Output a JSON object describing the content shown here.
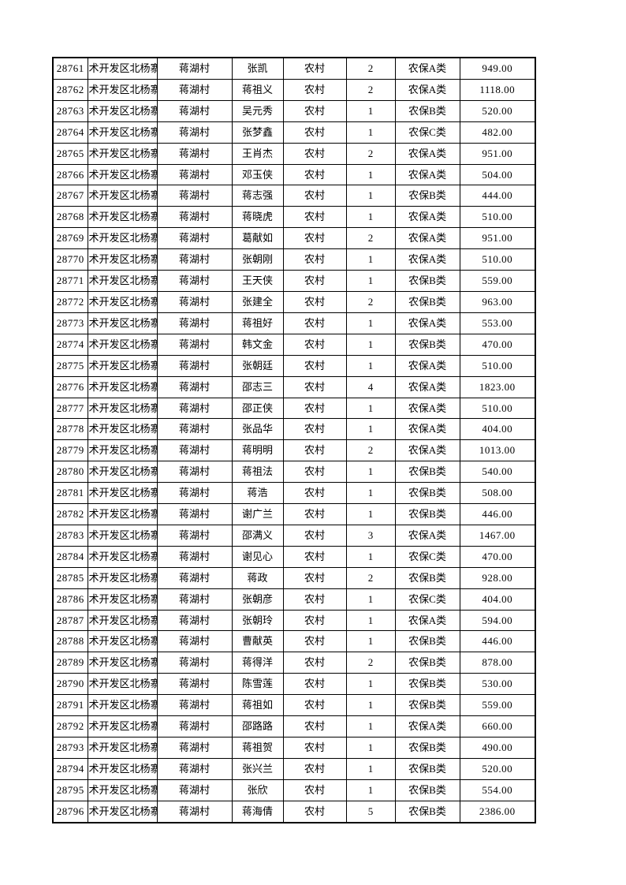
{
  "document": {
    "kind": "pension-roster-table-page",
    "text_color": "#000000",
    "border_color": "#000000",
    "page_background": "#ffffff"
  },
  "table": {
    "column_keys": [
      "id",
      "district",
      "village",
      "name",
      "type",
      "count",
      "category",
      "amount"
    ],
    "rows": [
      {
        "id": "28761",
        "district": "术开发区北杨寨",
        "village": "蒋湖村",
        "name": "张凯",
        "type": "农村",
        "count": "2",
        "category": "农保A类",
        "amount": "949.00"
      },
      {
        "id": "28762",
        "district": "术开发区北杨寨",
        "village": "蒋湖村",
        "name": "蒋祖义",
        "type": "农村",
        "count": "2",
        "category": "农保A类",
        "amount": "1118.00"
      },
      {
        "id": "28763",
        "district": "术开发区北杨寨",
        "village": "蒋湖村",
        "name": "吴元秀",
        "type": "农村",
        "count": "1",
        "category": "农保B类",
        "amount": "520.00"
      },
      {
        "id": "28764",
        "district": "术开发区北杨寨",
        "village": "蒋湖村",
        "name": "张梦鑫",
        "type": "农村",
        "count": "1",
        "category": "农保C类",
        "amount": "482.00"
      },
      {
        "id": "28765",
        "district": "术开发区北杨寨",
        "village": "蒋湖村",
        "name": "王肖杰",
        "type": "农村",
        "count": "2",
        "category": "农保A类",
        "amount": "951.00"
      },
      {
        "id": "28766",
        "district": "术开发区北杨寨",
        "village": "蒋湖村",
        "name": "邓玉侠",
        "type": "农村",
        "count": "1",
        "category": "农保A类",
        "amount": "504.00"
      },
      {
        "id": "28767",
        "district": "术开发区北杨寨",
        "village": "蒋湖村",
        "name": "蒋志强",
        "type": "农村",
        "count": "1",
        "category": "农保B类",
        "amount": "444.00"
      },
      {
        "id": "28768",
        "district": "术开发区北杨寨",
        "village": "蒋湖村",
        "name": "蒋晓虎",
        "type": "农村",
        "count": "1",
        "category": "农保A类",
        "amount": "510.00"
      },
      {
        "id": "28769",
        "district": "术开发区北杨寨",
        "village": "蒋湖村",
        "name": "葛献如",
        "type": "农村",
        "count": "2",
        "category": "农保A类",
        "amount": "951.00"
      },
      {
        "id": "28770",
        "district": "术开发区北杨寨",
        "village": "蒋湖村",
        "name": "张朝刚",
        "type": "农村",
        "count": "1",
        "category": "农保A类",
        "amount": "510.00"
      },
      {
        "id": "28771",
        "district": "术开发区北杨寨",
        "village": "蒋湖村",
        "name": "王天侠",
        "type": "农村",
        "count": "1",
        "category": "农保B类",
        "amount": "559.00"
      },
      {
        "id": "28772",
        "district": "术开发区北杨寨",
        "village": "蒋湖村",
        "name": "张建全",
        "type": "农村",
        "count": "2",
        "category": "农保B类",
        "amount": "963.00"
      },
      {
        "id": "28773",
        "district": "术开发区北杨寨",
        "village": "蒋湖村",
        "name": "蒋祖好",
        "type": "农村",
        "count": "1",
        "category": "农保A类",
        "amount": "553.00"
      },
      {
        "id": "28774",
        "district": "术开发区北杨寨",
        "village": "蒋湖村",
        "name": "韩文金",
        "type": "农村",
        "count": "1",
        "category": "农保B类",
        "amount": "470.00"
      },
      {
        "id": "28775",
        "district": "术开发区北杨寨",
        "village": "蒋湖村",
        "name": "张朝廷",
        "type": "农村",
        "count": "1",
        "category": "农保A类",
        "amount": "510.00"
      },
      {
        "id": "28776",
        "district": "术开发区北杨寨",
        "village": "蒋湖村",
        "name": "邵志三",
        "type": "农村",
        "count": "4",
        "category": "农保A类",
        "amount": "1823.00"
      },
      {
        "id": "28777",
        "district": "术开发区北杨寨",
        "village": "蒋湖村",
        "name": "邵正侠",
        "type": "农村",
        "count": "1",
        "category": "农保A类",
        "amount": "510.00"
      },
      {
        "id": "28778",
        "district": "术开发区北杨寨",
        "village": "蒋湖村",
        "name": "张品华",
        "type": "农村",
        "count": "1",
        "category": "农保A类",
        "amount": "404.00"
      },
      {
        "id": "28779",
        "district": "术开发区北杨寨",
        "village": "蒋湖村",
        "name": "蒋明明",
        "type": "农村",
        "count": "2",
        "category": "农保A类",
        "amount": "1013.00"
      },
      {
        "id": "28780",
        "district": "术开发区北杨寨",
        "village": "蒋湖村",
        "name": "蒋祖法",
        "type": "农村",
        "count": "1",
        "category": "农保B类",
        "amount": "540.00"
      },
      {
        "id": "28781",
        "district": "术开发区北杨寨",
        "village": "蒋湖村",
        "name": "蒋浩",
        "type": "农村",
        "count": "1",
        "category": "农保B类",
        "amount": "508.00"
      },
      {
        "id": "28782",
        "district": "术开发区北杨寨",
        "village": "蒋湖村",
        "name": "谢广兰",
        "type": "农村",
        "count": "1",
        "category": "农保B类",
        "amount": "446.00"
      },
      {
        "id": "28783",
        "district": "术开发区北杨寨",
        "village": "蒋湖村",
        "name": "邵满义",
        "type": "农村",
        "count": "3",
        "category": "农保A类",
        "amount": "1467.00"
      },
      {
        "id": "28784",
        "district": "术开发区北杨寨",
        "village": "蒋湖村",
        "name": "谢见心",
        "type": "农村",
        "count": "1",
        "category": "农保C类",
        "amount": "470.00"
      },
      {
        "id": "28785",
        "district": "术开发区北杨寨",
        "village": "蒋湖村",
        "name": "蒋政",
        "type": "农村",
        "count": "2",
        "category": "农保B类",
        "amount": "928.00"
      },
      {
        "id": "28786",
        "district": "术开发区北杨寨",
        "village": "蒋湖村",
        "name": "张朝彦",
        "type": "农村",
        "count": "1",
        "category": "农保C类",
        "amount": "404.00"
      },
      {
        "id": "28787",
        "district": "术开发区北杨寨",
        "village": "蒋湖村",
        "name": "张朝玲",
        "type": "农村",
        "count": "1",
        "category": "农保A类",
        "amount": "594.00"
      },
      {
        "id": "28788",
        "district": "术开发区北杨寨",
        "village": "蒋湖村",
        "name": "曹献英",
        "type": "农村",
        "count": "1",
        "category": "农保B类",
        "amount": "446.00"
      },
      {
        "id": "28789",
        "district": "术开发区北杨寨",
        "village": "蒋湖村",
        "name": "蒋得洋",
        "type": "农村",
        "count": "2",
        "category": "农保B类",
        "amount": "878.00"
      },
      {
        "id": "28790",
        "district": "术开发区北杨寨",
        "village": "蒋湖村",
        "name": "陈雪莲",
        "type": "农村",
        "count": "1",
        "category": "农保B类",
        "amount": "530.00"
      },
      {
        "id": "28791",
        "district": "术开发区北杨寨",
        "village": "蒋湖村",
        "name": "蒋祖如",
        "type": "农村",
        "count": "1",
        "category": "农保B类",
        "amount": "559.00"
      },
      {
        "id": "28792",
        "district": "术开发区北杨寨",
        "village": "蒋湖村",
        "name": "邵路路",
        "type": "农村",
        "count": "1",
        "category": "农保A类",
        "amount": "660.00"
      },
      {
        "id": "28793",
        "district": "术开发区北杨寨",
        "village": "蒋湖村",
        "name": "蒋祖贺",
        "type": "农村",
        "count": "1",
        "category": "农保B类",
        "amount": "490.00"
      },
      {
        "id": "28794",
        "district": "术开发区北杨寨",
        "village": "蒋湖村",
        "name": "张兴兰",
        "type": "农村",
        "count": "1",
        "category": "农保B类",
        "amount": "520.00"
      },
      {
        "id": "28795",
        "district": "术开发区北杨寨",
        "village": "蒋湖村",
        "name": "张欣",
        "type": "农村",
        "count": "1",
        "category": "农保B类",
        "amount": "554.00"
      },
      {
        "id": "28796",
        "district": "术开发区北杨寨",
        "village": "蒋湖村",
        "name": "蒋海倩",
        "type": "农村",
        "count": "5",
        "category": "农保B类",
        "amount": "2386.00"
      }
    ]
  }
}
